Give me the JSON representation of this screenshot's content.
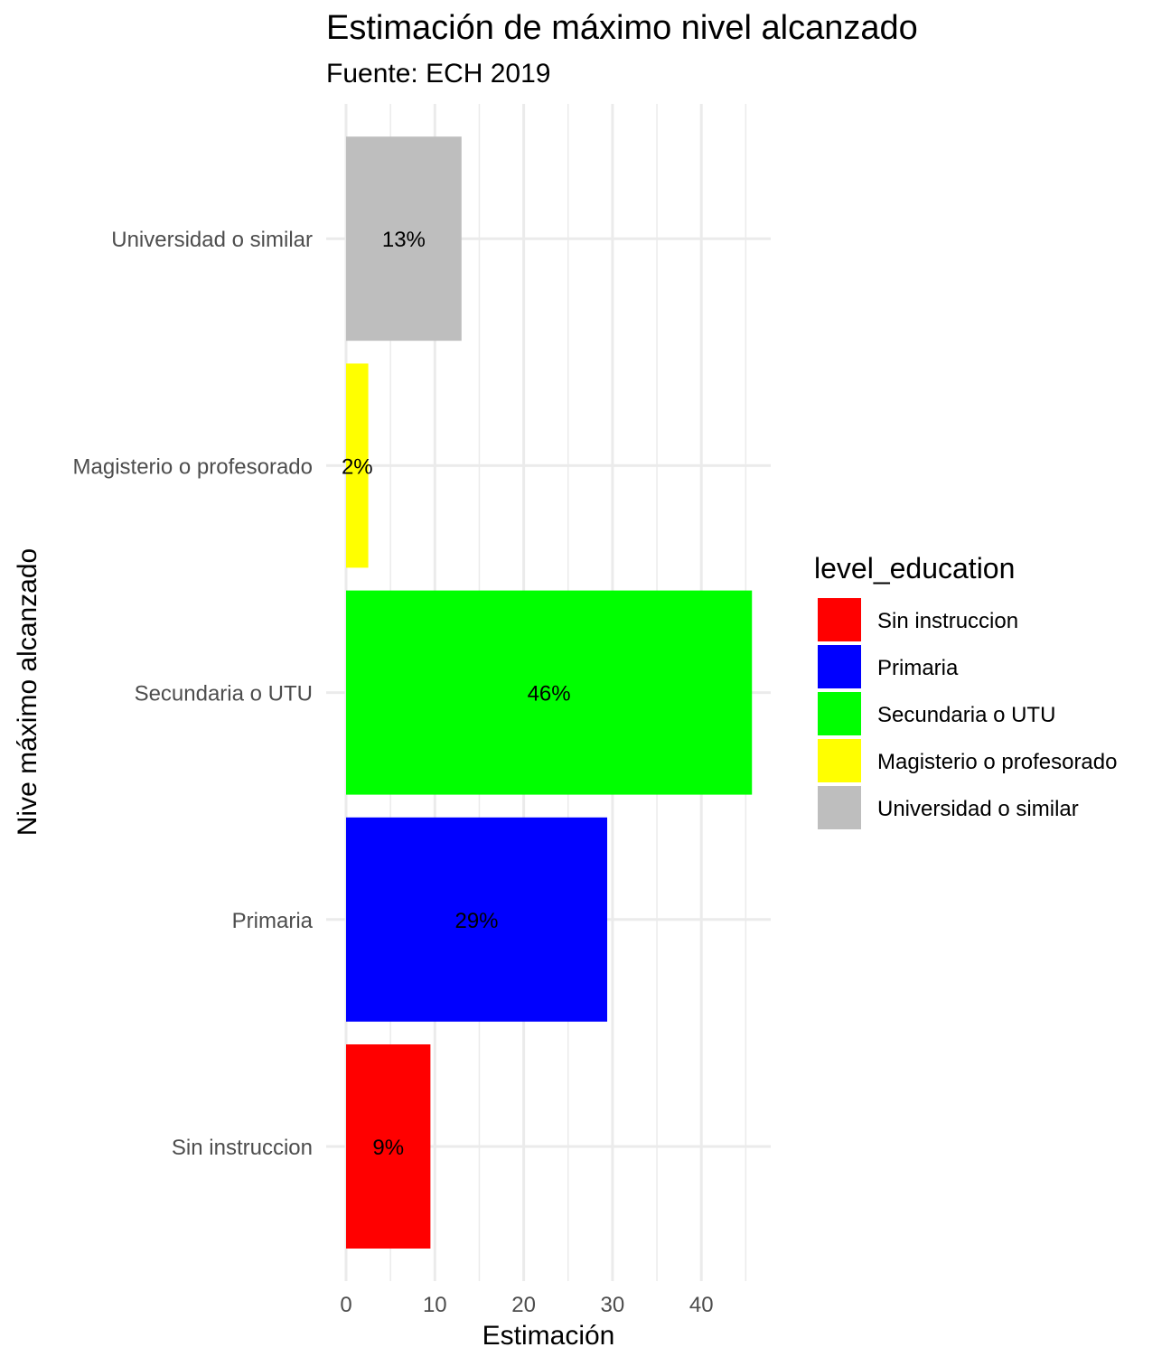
{
  "chart_data": {
    "type": "bar",
    "orientation": "horizontal",
    "title": "Estimación de máximo nivel alcanzado",
    "subtitle": "Fuente: ECH 2019",
    "xlabel": "Estimación",
    "ylabel": "Nive máximo alcanzado",
    "xlim": [
      0,
      48
    ],
    "xticks": [
      0,
      10,
      20,
      30,
      40
    ],
    "grid": true,
    "legend_position": "right",
    "legend_title": "level_education",
    "categories": [
      "Sin instruccion",
      "Primaria",
      "Secundaria o UTU",
      "Magisterio o profesorado",
      "Universidad o similar"
    ],
    "values": [
      9.5,
      29.4,
      45.7,
      2.5,
      13.0
    ],
    "labels": [
      "9%",
      "29%",
      "46%",
      "2%",
      "13%"
    ],
    "colors": [
      "#ff0000",
      "#0000ff",
      "#00ff00",
      "#ffff00",
      "#bebebe"
    ]
  }
}
